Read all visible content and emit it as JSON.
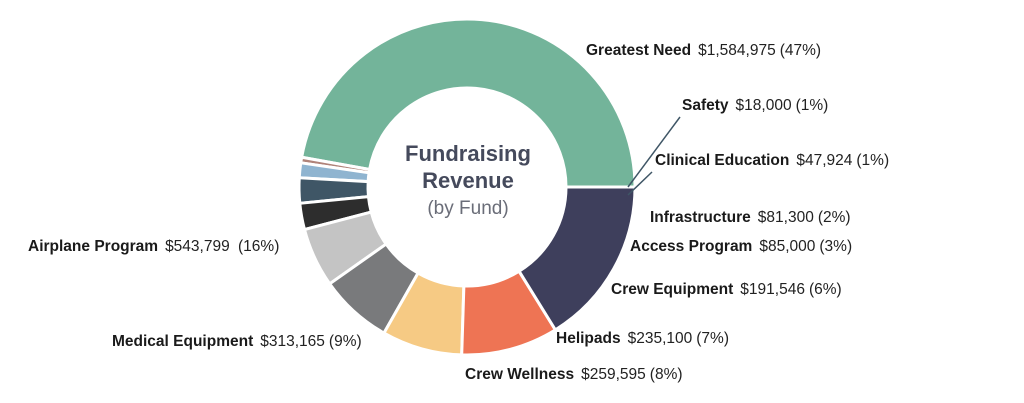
{
  "chart_data": {
    "type": "donut",
    "title_line1": "Fundraising",
    "title_line2": "Revenue",
    "subtitle": "(by Fund)",
    "slices": [
      {
        "name": "Greatest Need",
        "value": 1584975,
        "value_label": "$1,584,975",
        "pct_label": "(47%)",
        "color": "#73b49a"
      },
      {
        "name": "Safety",
        "value": 18000,
        "value_label": "$18,000",
        "pct_label": "(1%)",
        "color": "#b08379"
      },
      {
        "name": "Clinical Education",
        "value": 47924,
        "value_label": "$47,924",
        "pct_label": "(1%)",
        "color": "#8fb4d0"
      },
      {
        "name": "Infrastructure",
        "value": 81300,
        "value_label": "$81,300",
        "pct_label": "(2%)",
        "color": "#3f5666"
      },
      {
        "name": "Access Program",
        "value": 85000,
        "value_label": "$85,000",
        "pct_label": "(3%)",
        "color": "#2d2d2d"
      },
      {
        "name": "Crew Equipment",
        "value": 191546,
        "value_label": "$191,546",
        "pct_label": "(6%)",
        "color": "#c4c4c4"
      },
      {
        "name": "Helipads",
        "value": 235100,
        "value_label": "$235,100",
        "pct_label": "(7%)",
        "color": "#797a7c"
      },
      {
        "name": "Crew Wellness",
        "value": 259595,
        "value_label": "$259,595",
        "pct_label": "(8%)",
        "color": "#f6ca84"
      },
      {
        "name": "Medical Equipment",
        "value": 313165,
        "value_label": "$313,165",
        "pct_label": "(9%)",
        "color": "#ee7454"
      },
      {
        "name": "Airplane Program",
        "value": 543799,
        "value_label": "$543,799",
        "pct_label": " (16%)",
        "color": "#3e3f5c"
      }
    ]
  }
}
